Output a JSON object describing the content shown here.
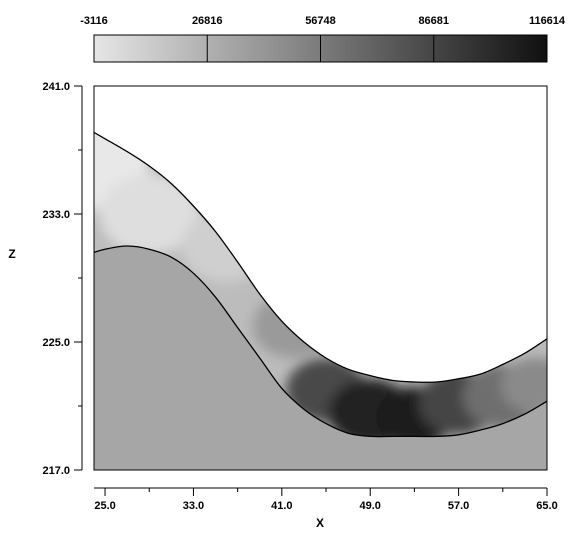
{
  "chart_data": {
    "type": "heatmap",
    "title": "",
    "xlabel": "X",
    "ylabel": "Z",
    "xlim": [
      24,
      65
    ],
    "ylim": [
      217,
      241
    ],
    "x_ticks": [
      "25.0",
      "33.0",
      "41.0",
      "49.0",
      "57.0",
      "65.0"
    ],
    "y_ticks": [
      "217.0",
      "225.0",
      "233.0",
      "241.0"
    ],
    "colorbar": {
      "labels": [
        "-3116",
        "26816",
        "56748",
        "86681",
        "116614"
      ],
      "values": [
        -3116,
        26816,
        56748,
        86681,
        116614
      ],
      "colors": [
        "#e6e6e6",
        "#101010"
      ]
    },
    "background_fill": "#a6a6a6",
    "band": {
      "upper_boundary": {
        "x": [
          24,
          25,
          27,
          29,
          31,
          33,
          35,
          37,
          39,
          41,
          43,
          45,
          47,
          49,
          51,
          53,
          55,
          57,
          59,
          61,
          63,
          65
        ],
        "z": [
          238.1,
          237.7,
          236.9,
          236.0,
          234.9,
          233.5,
          231.9,
          230.0,
          228.0,
          226.3,
          225.0,
          224.0,
          223.3,
          222.9,
          222.6,
          222.5,
          222.5,
          222.7,
          223.0,
          223.6,
          224.3,
          225.2
        ]
      },
      "lower_boundary": {
        "x": [
          24,
          25,
          27,
          29,
          31,
          33,
          35,
          37,
          39,
          41,
          43,
          45,
          47,
          49,
          51,
          53,
          55,
          57,
          59,
          61,
          63,
          65
        ],
        "z": [
          230.6,
          230.8,
          231.0,
          230.8,
          230.3,
          229.3,
          227.8,
          225.9,
          224.0,
          222.1,
          220.8,
          219.9,
          219.3,
          219.1,
          219.1,
          219.1,
          219.1,
          219.2,
          219.5,
          219.9,
          220.5,
          221.3
        ]
      }
    }
  }
}
